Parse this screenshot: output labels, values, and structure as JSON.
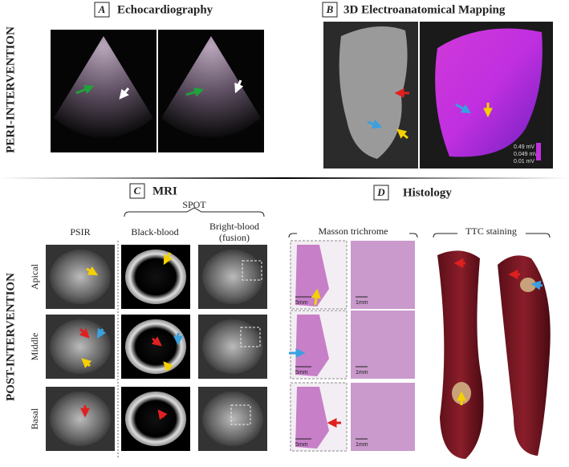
{
  "phases": [
    "PERI-INTERVENTION",
    "POST-INTERVENTION"
  ],
  "panels": {
    "A": {
      "label": "A",
      "title": "Echocardiography"
    },
    "B": {
      "label": "B",
      "title": "3D Electroanatomical Mapping",
      "scale": [
        "0.49 mV",
        "0.049 mV",
        "0.01 mV"
      ]
    },
    "C": {
      "label": "C",
      "title": "MRI",
      "group": "SPOT",
      "columns": [
        "PSIR",
        "Black-blood",
        "Bright-blood (fusion)"
      ],
      "rows": [
        "Apical",
        "Middle",
        "Basal"
      ]
    },
    "D": {
      "label": "D",
      "title": "Histology",
      "groups": [
        "Masson trichrome",
        "TTC staining"
      ],
      "scalebars": {
        "overview": "5mm",
        "detail": "1mm"
      }
    }
  }
}
